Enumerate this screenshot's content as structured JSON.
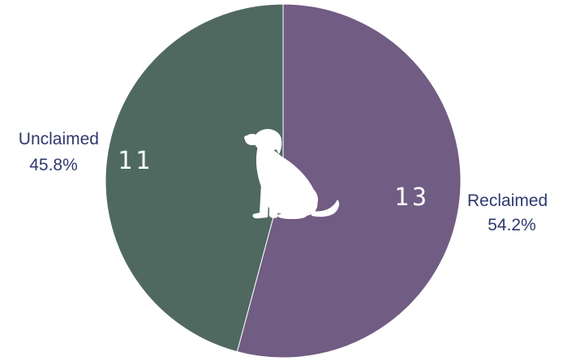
{
  "chart_data": {
    "type": "pie",
    "title": "",
    "slices": [
      {
        "label": "Reclaimed",
        "value": 13,
        "percent": "54.2%",
        "color": "#715c83"
      },
      {
        "label": "Unclaimed",
        "value": 11,
        "percent": "45.8%",
        "color": "#4f6961"
      }
    ],
    "center_icon": "dog-icon",
    "label_color": "#2e3a6e"
  }
}
